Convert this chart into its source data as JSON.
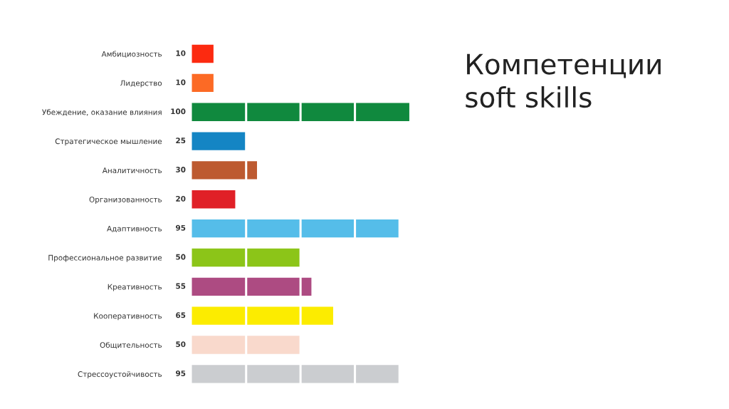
{
  "chart_data": {
    "type": "bar",
    "orientation": "horizontal",
    "title": "Компетенции\nsoft skills",
    "categories": [
      "Амбициозность",
      "Лидерство",
      "Убеждение, оказание влияния",
      "Стратегическое мышление",
      "Аналитичность",
      "Организованность",
      "Адаптивность",
      "Профессиональное развитие",
      "Креативность",
      "Кооперативность",
      "Общительность",
      "Стрессоустойчивость"
    ],
    "values": [
      10,
      10,
      100,
      25,
      30,
      20,
      95,
      50,
      55,
      65,
      50,
      95
    ],
    "colors": [
      "#fc2a10",
      "#fc6a25",
      "#10893e",
      "#1485c4",
      "#bd5a30",
      "#e02027",
      "#55bde9",
      "#8cc518",
      "#ad4b82",
      "#fcec00",
      "#f9d9cc",
      "#cbcdd0"
    ],
    "data_labels": true,
    "xlim": [
      0,
      100
    ],
    "xticks": [
      {
        "value": 25,
        "label": null
      },
      {
        "value": 50,
        "label": null
      },
      {
        "value": 75,
        "label": null
      }
    ],
    "tick_labels": "y",
    "grid": "x"
  }
}
